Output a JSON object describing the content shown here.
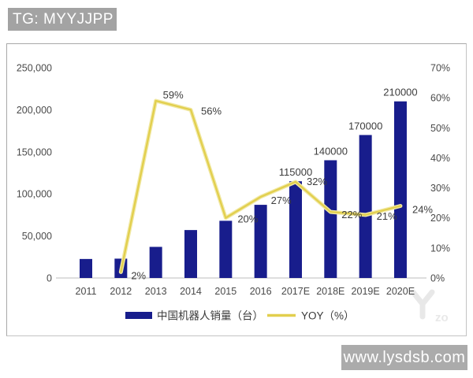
{
  "header": {
    "badge": "TG: MYYJJPP"
  },
  "footer": {
    "badge": "www.lysdsb.com"
  },
  "watermark": {
    "letters": "zo"
  },
  "chart_data": {
    "type": "bar",
    "subtype": "bar+line combo",
    "categories": [
      "2011",
      "2012",
      "2013",
      "2014",
      "2015",
      "2016",
      "2017E",
      "2018E",
      "2019E",
      "2020E"
    ],
    "series": [
      {
        "name": "中国机器人销量（台）",
        "type": "bar",
        "axis": "left",
        "color": "#181d8c",
        "values": [
          22600,
          23000,
          37000,
          57000,
          68000,
          87000,
          115000,
          140000,
          170000,
          210000
        ],
        "value_labels": [
          null,
          null,
          null,
          null,
          null,
          null,
          "115000",
          "140000",
          "170000",
          "210000"
        ]
      },
      {
        "name": "YOY（%）",
        "type": "line",
        "axis": "right",
        "color": "#e2cf4e",
        "halo_color": "#f1e9a6",
        "values": [
          null,
          2,
          59,
          56,
          20,
          27,
          32,
          22,
          21,
          24
        ],
        "point_labels": [
          null,
          "2%",
          "59%",
          "56%",
          "20%",
          "27%",
          "32%",
          "22%",
          "21%",
          "24%"
        ]
      }
    ],
    "left_axis": {
      "min": 0,
      "max": 250000,
      "step": 50000,
      "tick_labels": [
        "0",
        "50,000",
        "100,000",
        "150,000",
        "200,000",
        "250,000"
      ]
    },
    "right_axis": {
      "min": 0,
      "max": 70,
      "step": 10,
      "tick_labels": [
        "0%",
        "10%",
        "20%",
        "30%",
        "40%",
        "50%",
        "60%",
        "70%"
      ]
    },
    "title": "",
    "xlabel": "",
    "ylabel": "",
    "legend_position": "bottom",
    "grid": false,
    "label_color": "#3c3c3c",
    "axis_text_color": "#4a4a4a",
    "axis_line_color": "#bdbdbd"
  }
}
